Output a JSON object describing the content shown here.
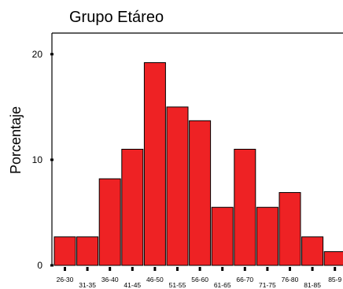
{
  "chart_data": {
    "type": "bar",
    "title": "Grupo Etáreo",
    "xlabel": "",
    "ylabel": "Porcentaje",
    "ylim": [
      0,
      22
    ],
    "yticks": [
      0,
      10,
      20
    ],
    "categories": [
      "26-30",
      "31-35",
      "36-40",
      "41-45",
      "46-50",
      "51-55",
      "56-60",
      "61-65",
      "66-70",
      "71-75",
      "76-80",
      "81-85",
      "85-9"
    ],
    "values": [
      2.7,
      2.7,
      8.2,
      11.0,
      19.2,
      15.0,
      13.7,
      5.5,
      11.0,
      5.5,
      6.9,
      2.7,
      1.3
    ],
    "bar_color": "#ee2224",
    "edge_color": "#000000",
    "grid": false,
    "legend": "none"
  }
}
